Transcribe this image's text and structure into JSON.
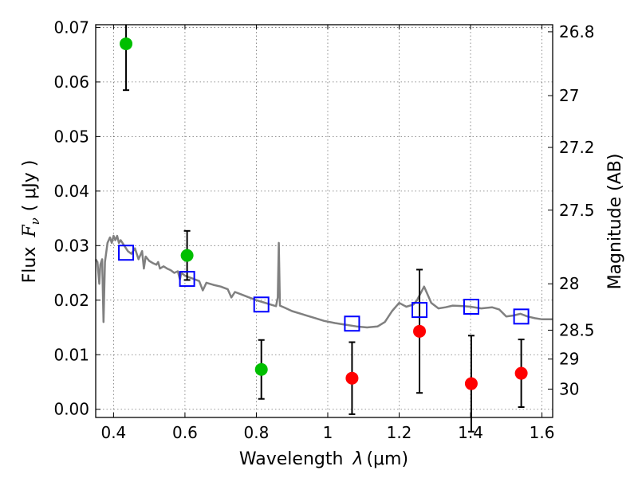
{
  "chart_data": {
    "type": "scatter",
    "title": "",
    "xlabel_prefix": "Wavelength",
    "xlabel_symbol": "λ",
    "xlabel_unit": "(μm)",
    "ylabel_text": "Flux",
    "ylabel_symbol": "F",
    "ylabel_subscript": "ν",
    "ylabel_unit": "( μJy )",
    "y2label": "Magnitude (AB)",
    "xlim": [
      0.35,
      1.63
    ],
    "ylim": [
      -0.0015,
      0.0705
    ],
    "grid": true,
    "xticks": [
      {
        "value": 0.4,
        "label": "0.4"
      },
      {
        "value": 0.6,
        "label": "0.6"
      },
      {
        "value": 0.8,
        "label": "0.8"
      },
      {
        "value": 1.0,
        "label": "1"
      },
      {
        "value": 1.2,
        "label": "1.2"
      },
      {
        "value": 1.4,
        "label": "1.4"
      },
      {
        "value": 1.6,
        "label": "1.6"
      }
    ],
    "yticks": [
      {
        "value": 0.0,
        "label": "0.00"
      },
      {
        "value": 0.01,
        "label": "0.01"
      },
      {
        "value": 0.02,
        "label": "0.02"
      },
      {
        "value": 0.03,
        "label": "0.03"
      },
      {
        "value": 0.04,
        "label": "0.04"
      },
      {
        "value": 0.05,
        "label": "0.05"
      },
      {
        "value": 0.06,
        "label": "0.06"
      },
      {
        "value": 0.07,
        "label": "0.07"
      }
    ],
    "y2ticks": [
      {
        "flux": 0.0692,
        "label": "26.8"
      },
      {
        "flux": 0.0575,
        "label": "27"
      },
      {
        "flux": 0.048,
        "label": "27.2"
      },
      {
        "flux": 0.0365,
        "label": "27.5"
      },
      {
        "flux": 0.023,
        "label": "28"
      },
      {
        "flux": 0.0145,
        "label": "28.5"
      },
      {
        "flux": 0.0092,
        "label": "29"
      },
      {
        "flux": 0.0037,
        "label": "30"
      }
    ],
    "series": [
      {
        "kind": "detection",
        "color": "#00bf00",
        "points": [
          {
            "x": 0.435,
            "y": 0.067,
            "err": 0.0085
          },
          {
            "x": 0.606,
            "y": 0.0282,
            "err": 0.0045
          },
          {
            "x": 0.814,
            "y": 0.0073,
            "err": 0.0054
          }
        ]
      },
      {
        "kind": "upper-limit",
        "color": "#ff0000",
        "points": [
          {
            "x": 1.068,
            "y": 0.0057,
            "err": 0.0066
          },
          {
            "x": 1.257,
            "y": 0.0143,
            "err": 0.0113
          },
          {
            "x": 1.402,
            "y": 0.0047,
            "err": 0.0088
          },
          {
            "x": 1.542,
            "y": 0.0066,
            "err": 0.0062
          }
        ]
      },
      {
        "kind": "model-photometry",
        "color": "#0000ff",
        "points": [
          {
            "x": 0.435,
            "y": 0.0287
          },
          {
            "x": 0.606,
            "y": 0.0239
          },
          {
            "x": 0.814,
            "y": 0.0192
          },
          {
            "x": 1.068,
            "y": 0.0157
          },
          {
            "x": 1.257,
            "y": 0.0182
          },
          {
            "x": 1.402,
            "y": 0.0188
          },
          {
            "x": 1.542,
            "y": 0.017
          }
        ]
      }
    ],
    "model_curve": {
      "color": "#808080",
      "points": [
        [
          0.35,
          0.0275
        ],
        [
          0.355,
          0.027
        ],
        [
          0.36,
          0.023
        ],
        [
          0.363,
          0.0265
        ],
        [
          0.368,
          0.0275
        ],
        [
          0.372,
          0.016
        ],
        [
          0.376,
          0.027
        ],
        [
          0.383,
          0.0305
        ],
        [
          0.39,
          0.0315
        ],
        [
          0.395,
          0.0305
        ],
        [
          0.4,
          0.0318
        ],
        [
          0.405,
          0.031
        ],
        [
          0.41,
          0.0318
        ],
        [
          0.415,
          0.0305
        ],
        [
          0.42,
          0.031
        ],
        [
          0.43,
          0.03
        ],
        [
          0.44,
          0.029
        ],
        [
          0.45,
          0.0285
        ],
        [
          0.46,
          0.0295
        ],
        [
          0.47,
          0.0275
        ],
        [
          0.48,
          0.029
        ],
        [
          0.485,
          0.0258
        ],
        [
          0.49,
          0.028
        ],
        [
          0.5,
          0.0272
        ],
        [
          0.51,
          0.0268
        ],
        [
          0.52,
          0.0265
        ],
        [
          0.525,
          0.027
        ],
        [
          0.53,
          0.0258
        ],
        [
          0.54,
          0.0262
        ],
        [
          0.55,
          0.0258
        ],
        [
          0.56,
          0.0255
        ],
        [
          0.57,
          0.025
        ],
        [
          0.58,
          0.0253
        ],
        [
          0.586,
          0.0238
        ],
        [
          0.59,
          0.025
        ],
        [
          0.6,
          0.0245
        ],
        [
          0.62,
          0.024
        ],
        [
          0.64,
          0.0235
        ],
        [
          0.65,
          0.0218
        ],
        [
          0.66,
          0.0232
        ],
        [
          0.68,
          0.0228
        ],
        [
          0.7,
          0.0225
        ],
        [
          0.72,
          0.022
        ],
        [
          0.73,
          0.0205
        ],
        [
          0.74,
          0.0215
        ],
        [
          0.76,
          0.021
        ],
        [
          0.78,
          0.0205
        ],
        [
          0.8,
          0.02
        ],
        [
          0.82,
          0.0196
        ],
        [
          0.84,
          0.0192
        ],
        [
          0.855,
          0.0189
        ],
        [
          0.86,
          0.0205
        ],
        [
          0.863,
          0.0305
        ],
        [
          0.866,
          0.019
        ],
        [
          0.88,
          0.0186
        ],
        [
          0.9,
          0.018
        ],
        [
          0.93,
          0.0174
        ],
        [
          0.96,
          0.0168
        ],
        [
          0.99,
          0.0162
        ],
        [
          1.02,
          0.0158
        ],
        [
          1.05,
          0.0155
        ],
        [
          1.08,
          0.0152
        ],
        [
          1.11,
          0.015
        ],
        [
          1.14,
          0.0152
        ],
        [
          1.16,
          0.016
        ],
        [
          1.18,
          0.018
        ],
        [
          1.2,
          0.0195
        ],
        [
          1.22,
          0.0188
        ],
        [
          1.24,
          0.0192
        ],
        [
          1.25,
          0.02
        ],
        [
          1.27,
          0.0225
        ],
        [
          1.29,
          0.0195
        ],
        [
          1.31,
          0.0185
        ],
        [
          1.33,
          0.0187
        ],
        [
          1.35,
          0.019
        ],
        [
          1.38,
          0.0189
        ],
        [
          1.4,
          0.0188
        ],
        [
          1.43,
          0.0185
        ],
        [
          1.46,
          0.0187
        ],
        [
          1.48,
          0.0183
        ],
        [
          1.5,
          0.017
        ],
        [
          1.52,
          0.0172
        ],
        [
          1.54,
          0.0175
        ],
        [
          1.56,
          0.017
        ],
        [
          1.58,
          0.0167
        ],
        [
          1.6,
          0.0165
        ],
        [
          1.63,
          0.0165
        ]
      ]
    }
  }
}
